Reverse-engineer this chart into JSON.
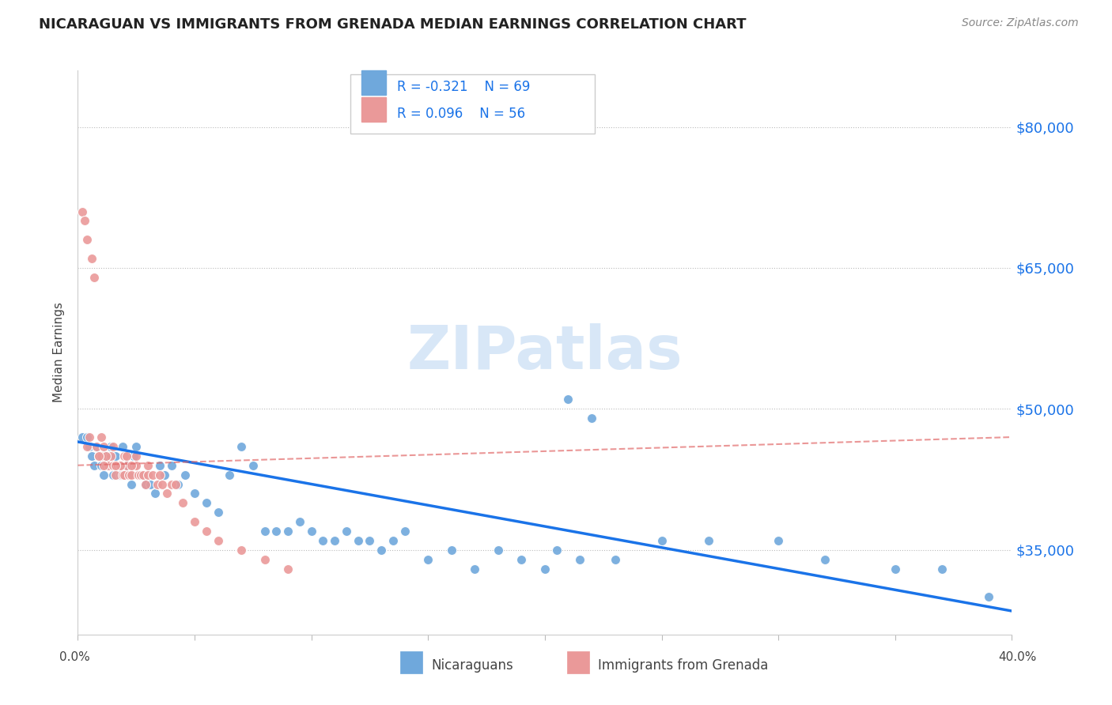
{
  "title": "NICARAGUAN VS IMMIGRANTS FROM GRENADA MEDIAN EARNINGS CORRELATION CHART",
  "source": "Source: ZipAtlas.com",
  "ylabel": "Median Earnings",
  "xmin": 0.0,
  "xmax": 40.0,
  "ymin": 26000,
  "ymax": 86000,
  "yticks": [
    35000,
    50000,
    65000,
    80000
  ],
  "ytick_labels": [
    "$35,000",
    "$50,000",
    "$65,000",
    "$80,000"
  ],
  "legend_r1": "R = -0.321",
  "legend_n1": "N = 69",
  "legend_r2": "R = 0.096",
  "legend_n2": "N = 56",
  "blue_color": "#6fa8dc",
  "pink_color": "#ea9999",
  "trend_blue_color": "#1a73e8",
  "trend_pink_color": "#e06060",
  "watermark": "ZIPatlas",
  "blue_label": "Nicaraguans",
  "pink_label": "Immigrants from Grenada",
  "blue_scatter_x": [
    0.2,
    0.4,
    0.5,
    0.6,
    0.7,
    0.8,
    0.9,
    1.0,
    1.1,
    1.2,
    1.3,
    1.4,
    1.5,
    1.6,
    1.7,
    1.8,
    1.9,
    2.0,
    2.1,
    2.2,
    2.3,
    2.4,
    2.5,
    2.7,
    2.9,
    3.1,
    3.3,
    3.5,
    3.7,
    4.0,
    4.3,
    4.6,
    5.0,
    5.5,
    6.0,
    6.5,
    7.0,
    7.5,
    8.0,
    8.5,
    9.0,
    9.5,
    10.0,
    10.5,
    11.0,
    11.5,
    12.0,
    12.5,
    13.0,
    13.5,
    14.0,
    15.0,
    16.0,
    17.0,
    18.0,
    19.0,
    20.0,
    21.0,
    22.0,
    25.0,
    27.0,
    30.0,
    32.0,
    35.0,
    37.0,
    39.0,
    20.5,
    21.5,
    23.0
  ],
  "blue_scatter_y": [
    47000,
    47000,
    46000,
    45000,
    44000,
    46000,
    45000,
    44000,
    43000,
    45000,
    44000,
    46000,
    43000,
    45000,
    44000,
    43000,
    46000,
    43000,
    44000,
    43000,
    42000,
    45000,
    46000,
    43000,
    42000,
    42000,
    41000,
    44000,
    43000,
    44000,
    42000,
    43000,
    41000,
    40000,
    39000,
    43000,
    46000,
    44000,
    37000,
    37000,
    37000,
    38000,
    37000,
    36000,
    36000,
    37000,
    36000,
    36000,
    35000,
    36000,
    37000,
    34000,
    35000,
    33000,
    35000,
    34000,
    33000,
    51000,
    49000,
    36000,
    36000,
    36000,
    34000,
    33000,
    33000,
    30000,
    35000,
    34000,
    34000
  ],
  "pink_scatter_x": [
    0.2,
    0.3,
    0.4,
    0.6,
    0.7,
    0.8,
    0.9,
    1.0,
    1.1,
    1.2,
    1.3,
    1.4,
    1.5,
    1.6,
    1.7,
    1.8,
    1.9,
    2.0,
    2.1,
    2.2,
    2.3,
    2.4,
    2.5,
    2.6,
    2.7,
    2.8,
    2.9,
    3.0,
    3.2,
    3.4,
    3.6,
    3.8,
    4.0,
    4.5,
    5.0,
    5.5,
    6.0,
    7.0,
    8.0,
    9.0,
    1.0,
    1.5,
    2.0,
    2.5,
    3.0,
    0.5,
    1.2,
    1.8,
    2.3,
    3.5,
    4.2,
    2.1,
    1.6,
    0.9,
    0.4,
    1.1
  ],
  "pink_scatter_y": [
    71000,
    70000,
    68000,
    66000,
    64000,
    46000,
    45000,
    45000,
    46000,
    44000,
    44000,
    45000,
    44000,
    43000,
    44000,
    44000,
    43000,
    43000,
    44000,
    43000,
    43000,
    44000,
    44000,
    43000,
    43000,
    43000,
    42000,
    43000,
    43000,
    42000,
    42000,
    41000,
    42000,
    40000,
    38000,
    37000,
    36000,
    35000,
    34000,
    33000,
    47000,
    46000,
    45000,
    45000,
    44000,
    47000,
    45000,
    44000,
    44000,
    43000,
    42000,
    45000,
    44000,
    45000,
    46000,
    44000
  ],
  "blue_trend_x": [
    0.0,
    40.0
  ],
  "blue_trend_y": [
    46500,
    28500
  ],
  "pink_trend_x": [
    0.0,
    13.0
  ],
  "pink_trend_y": [
    44500,
    46000
  ]
}
